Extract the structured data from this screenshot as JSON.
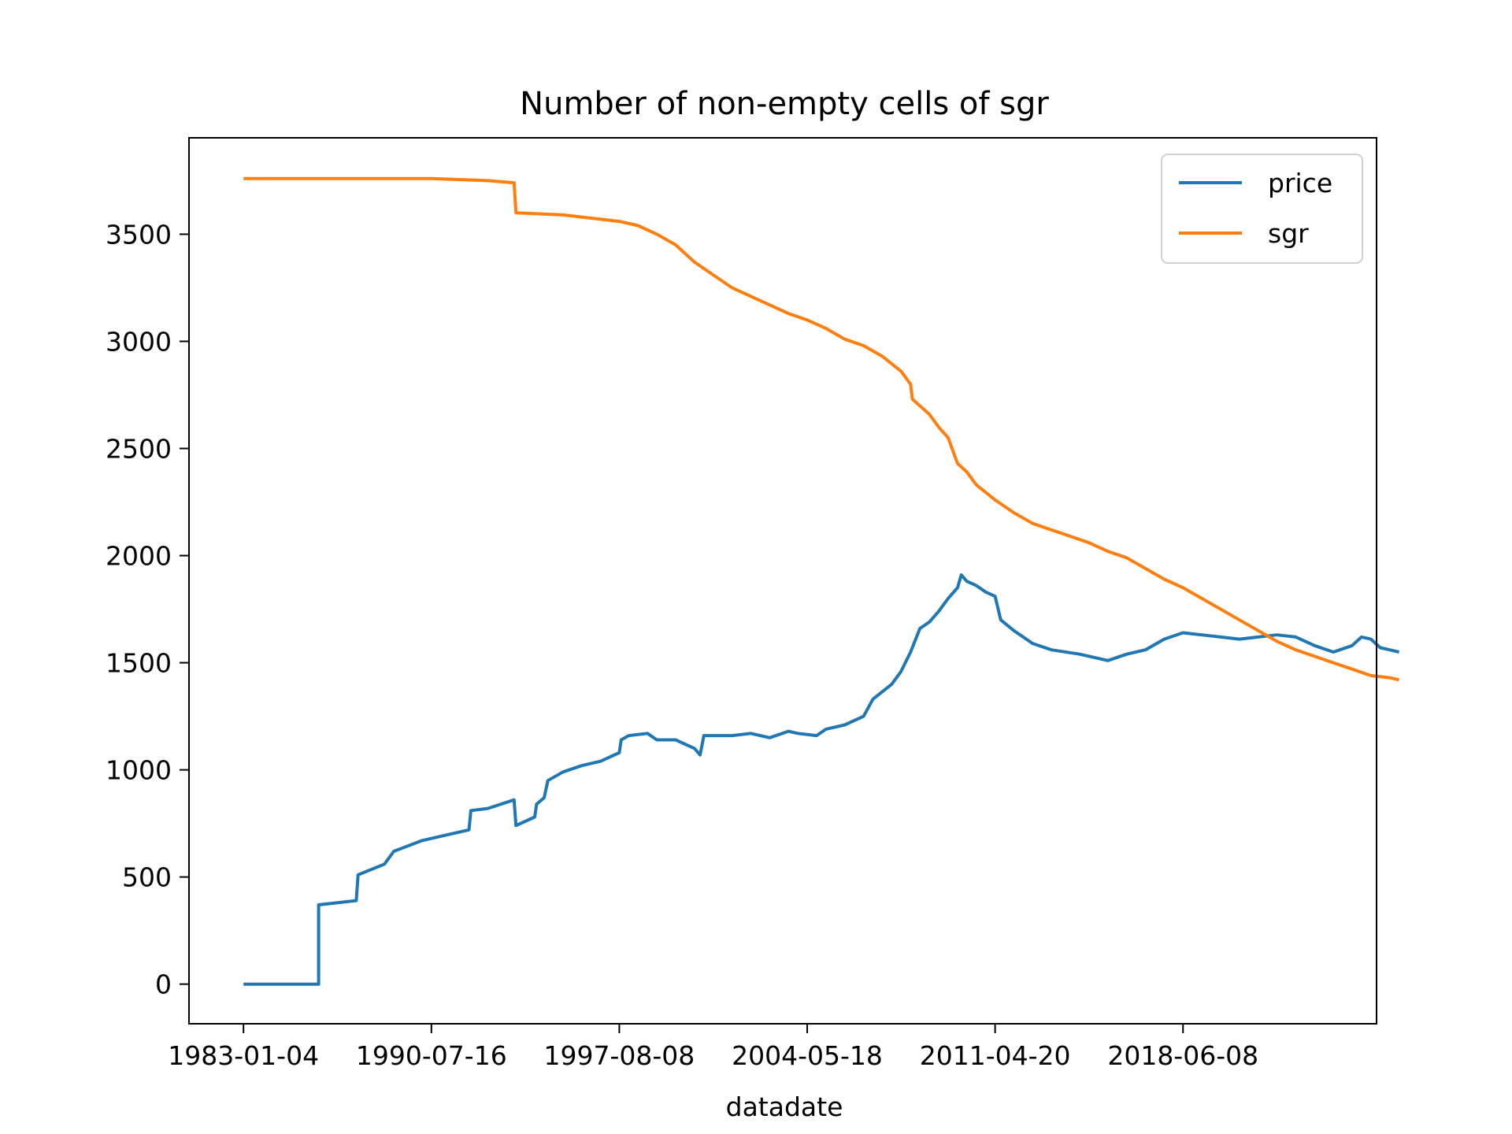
{
  "chart_data": {
    "type": "line",
    "title": "Number of non-empty cells of sgr",
    "xlabel": "datadate",
    "ylabel": "",
    "x_tick_labels": [
      "1983-01-04",
      "1990-07-16",
      "1997-08-08",
      "2004-05-18",
      "2011-04-20",
      "2018-06-08"
    ],
    "y_ticks": [
      0,
      500,
      1000,
      1500,
      2000,
      2500,
      3000,
      3500
    ],
    "xlim": [
      -0.29,
      6.03
    ],
    "ylim": [
      -185,
      3950
    ],
    "grid": false,
    "legend_position": "upper-right",
    "series": [
      {
        "name": "price",
        "color": "#1f77b4",
        "points": [
          [
            0.0,
            0
          ],
          [
            0.4,
            0
          ],
          [
            0.4,
            370
          ],
          [
            0.6,
            390
          ],
          [
            0.61,
            510
          ],
          [
            0.75,
            560
          ],
          [
            0.8,
            620
          ],
          [
            0.95,
            670
          ],
          [
            1.05,
            690
          ],
          [
            1.2,
            720
          ],
          [
            1.21,
            810
          ],
          [
            1.3,
            820
          ],
          [
            1.44,
            860
          ],
          [
            1.45,
            740
          ],
          [
            1.55,
            780
          ],
          [
            1.56,
            840
          ],
          [
            1.6,
            870
          ],
          [
            1.62,
            950
          ],
          [
            1.7,
            990
          ],
          [
            1.8,
            1020
          ],
          [
            1.9,
            1040
          ],
          [
            2.0,
            1080
          ],
          [
            2.01,
            1140
          ],
          [
            2.05,
            1160
          ],
          [
            2.15,
            1170
          ],
          [
            2.2,
            1140
          ],
          [
            2.3,
            1140
          ],
          [
            2.4,
            1100
          ],
          [
            2.43,
            1070
          ],
          [
            2.45,
            1160
          ],
          [
            2.6,
            1160
          ],
          [
            2.7,
            1170
          ],
          [
            2.8,
            1150
          ],
          [
            2.9,
            1180
          ],
          [
            2.95,
            1170
          ],
          [
            3.05,
            1160
          ],
          [
            3.1,
            1190
          ],
          [
            3.2,
            1210
          ],
          [
            3.3,
            1250
          ],
          [
            3.35,
            1330
          ],
          [
            3.45,
            1400
          ],
          [
            3.5,
            1460
          ],
          [
            3.55,
            1550
          ],
          [
            3.6,
            1660
          ],
          [
            3.65,
            1690
          ],
          [
            3.7,
            1740
          ],
          [
            3.75,
            1800
          ],
          [
            3.8,
            1850
          ],
          [
            3.82,
            1910
          ],
          [
            3.85,
            1880
          ],
          [
            3.9,
            1860
          ],
          [
            3.95,
            1830
          ],
          [
            4.0,
            1810
          ],
          [
            4.03,
            1700
          ],
          [
            4.1,
            1650
          ],
          [
            4.2,
            1590
          ],
          [
            4.3,
            1560
          ],
          [
            4.45,
            1540
          ],
          [
            4.6,
            1510
          ],
          [
            4.7,
            1540
          ],
          [
            4.8,
            1560
          ],
          [
            4.9,
            1610
          ],
          [
            5.0,
            1640
          ],
          [
            5.1,
            1630
          ],
          [
            5.2,
            1620
          ],
          [
            5.3,
            1610
          ],
          [
            5.4,
            1620
          ],
          [
            5.5,
            1630
          ],
          [
            5.6,
            1620
          ],
          [
            5.7,
            1580
          ],
          [
            5.8,
            1550
          ],
          [
            5.9,
            1580
          ],
          [
            5.95,
            1620
          ],
          [
            6.0,
            1610
          ],
          [
            6.05,
            1570
          ],
          [
            6.1,
            1560
          ],
          [
            6.15,
            1550
          ]
        ]
      },
      {
        "name": "sgr",
        "color": "#ff7f0e",
        "points": [
          [
            0.0,
            3760
          ],
          [
            0.5,
            3760
          ],
          [
            1.0,
            3760
          ],
          [
            1.3,
            3750
          ],
          [
            1.44,
            3740
          ],
          [
            1.45,
            3600
          ],
          [
            1.7,
            3590
          ],
          [
            1.9,
            3570
          ],
          [
            2.0,
            3560
          ],
          [
            2.1,
            3540
          ],
          [
            2.2,
            3500
          ],
          [
            2.3,
            3450
          ],
          [
            2.4,
            3370
          ],
          [
            2.5,
            3310
          ],
          [
            2.6,
            3250
          ],
          [
            2.7,
            3210
          ],
          [
            2.8,
            3170
          ],
          [
            2.9,
            3130
          ],
          [
            3.0,
            3100
          ],
          [
            3.1,
            3060
          ],
          [
            3.2,
            3010
          ],
          [
            3.3,
            2980
          ],
          [
            3.4,
            2930
          ],
          [
            3.5,
            2860
          ],
          [
            3.55,
            2800
          ],
          [
            3.56,
            2730
          ],
          [
            3.65,
            2660
          ],
          [
            3.7,
            2600
          ],
          [
            3.75,
            2550
          ],
          [
            3.8,
            2430
          ],
          [
            3.85,
            2390
          ],
          [
            3.9,
            2330
          ],
          [
            4.0,
            2260
          ],
          [
            4.1,
            2200
          ],
          [
            4.2,
            2150
          ],
          [
            4.3,
            2120
          ],
          [
            4.4,
            2090
          ],
          [
            4.5,
            2060
          ],
          [
            4.6,
            2020
          ],
          [
            4.7,
            1990
          ],
          [
            4.8,
            1940
          ],
          [
            4.9,
            1890
          ],
          [
            5.0,
            1850
          ],
          [
            5.1,
            1800
          ],
          [
            5.2,
            1750
          ],
          [
            5.3,
            1700
          ],
          [
            5.4,
            1650
          ],
          [
            5.5,
            1600
          ],
          [
            5.6,
            1560
          ],
          [
            5.7,
            1530
          ],
          [
            5.8,
            1500
          ],
          [
            5.9,
            1470
          ],
          [
            6.0,
            1440
          ],
          [
            6.1,
            1430
          ],
          [
            6.15,
            1420
          ]
        ]
      }
    ]
  }
}
